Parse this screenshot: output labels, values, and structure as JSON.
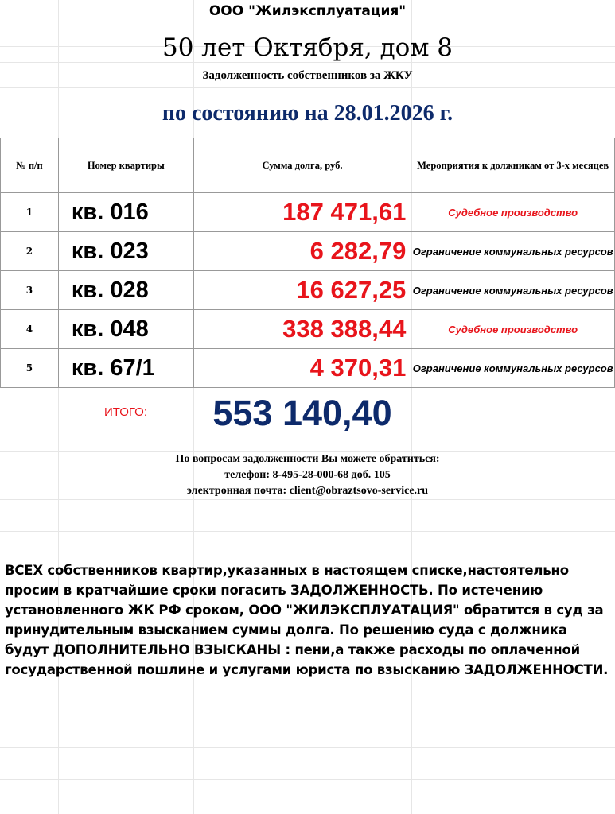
{
  "header": {
    "company": "ООО \"Жилэксплуатация\"",
    "address": "50 лет Октября, дом 8",
    "subtitle": "Задолженность собственников за ЖКУ",
    "date_line": "по состоянию на 28.01.2026 г."
  },
  "table": {
    "columns": [
      "№ п/п",
      "Номер квартиры",
      "Сумма долга, руб.",
      "Мероприятия к должникам от 3-х месяцев"
    ],
    "rows": [
      {
        "n": "1",
        "apartment": "кв. 016",
        "debt": "187 471,61",
        "action": "Судебное производство",
        "action_color": "#e8141b"
      },
      {
        "n": "2",
        "apartment": "кв. 023",
        "debt": "6 282,79",
        "action": "Ограничение  коммунальных ресурсов",
        "action_color": "#000000"
      },
      {
        "n": "3",
        "apartment": "кв. 028",
        "debt": "16 627,25",
        "action": "Ограничение  коммунальных ресурсов",
        "action_color": "#000000"
      },
      {
        "n": "4",
        "apartment": "кв. 048",
        "debt": "338 388,44",
        "action": "Судебное производство",
        "action_color": "#e8141b"
      },
      {
        "n": "5",
        "apartment": "кв. 67/1",
        "debt": "4 370,31",
        "action": "Ограничение  коммунальных ресурсов",
        "action_color": "#000000"
      }
    ]
  },
  "total": {
    "label": "ИТОГО:",
    "value": "553 140,40"
  },
  "contact": {
    "line1": "По вопросам задолженности Вы можете обратиться:",
    "line2": "телефон:  8-495-28-000-68 доб. 105",
    "line3": "электронная почта: client@obraztsovo-service.ru"
  },
  "notice": "ВСЕХ собственников квартир,указанных в настоящем списке,настоятельно просим в кратчайшие сроки погасить ЗАДОЛЖЕННОСТЬ.  По истечению установленного ЖК РФ сроком, ООО \"ЖИЛЭКСПЛУАТАЦИЯ\" обратится в суд за принудительным взысканием суммы долга. По решению суда с должника будут ДОПОЛНИТЕЛЬНО ВЗЫСКАНЫ : пени,а также расходы по оплаченной государственной пошлине и услугами юриста по взысканию ЗАДОЛЖЕННОСТИ.",
  "colors": {
    "accent_blue": "#0d2a6b",
    "debt_red": "#e8141b"
  }
}
